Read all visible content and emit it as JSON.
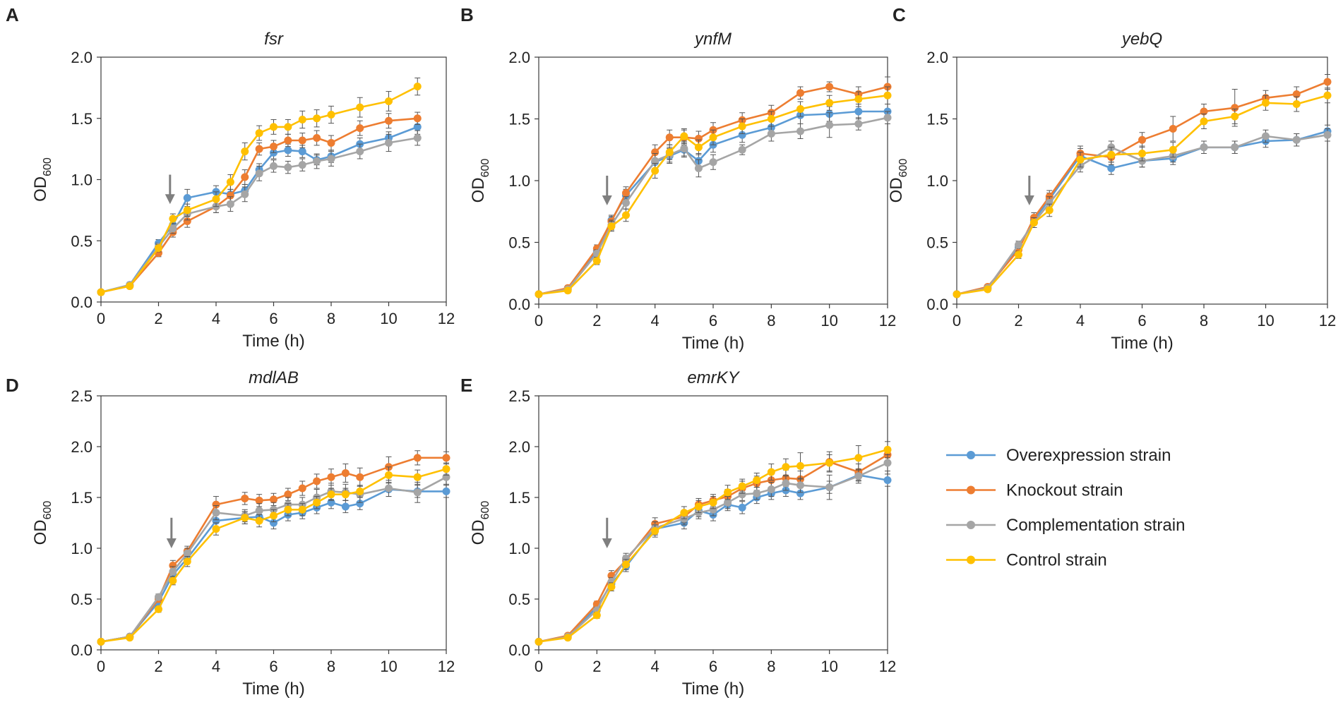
{
  "figure": {
    "legend": [
      {
        "label": "Overexpression strain",
        "color": "#5B9BD5"
      },
      {
        "label": "Knockout strain",
        "color": "#ED7D31"
      },
      {
        "label": "Complementation strain",
        "color": "#A5A5A5"
      },
      {
        "label": "Control strain",
        "color": "#FFC000"
      }
    ]
  },
  "chart_data": [
    {
      "type": "line",
      "panel": "A",
      "title": "fsr",
      "xlabel": "Time (h)",
      "ylabel_main": "OD",
      "ylabel_sub": "600",
      "xlim": [
        0,
        12
      ],
      "ylim": [
        0,
        2.0
      ],
      "xticks": [
        "0",
        "2",
        "4",
        "6",
        "8",
        "10",
        "12"
      ],
      "yticks": [
        "0.0",
        "0.5",
        "1.0",
        "1.5",
        "2.0"
      ],
      "arrow_x": 2.4,
      "x": [
        0,
        1,
        2,
        2.5,
        3,
        4,
        4.5,
        5,
        5.5,
        6,
        6.5,
        7,
        7.5,
        8,
        9,
        10,
        11
      ],
      "series": [
        {
          "name": "Overexpression strain",
          "values": [
            0.08,
            0.14,
            0.48,
            0.63,
            0.85,
            0.9,
            0.88,
            0.91,
            1.08,
            1.22,
            1.24,
            1.23,
            1.16,
            1.19,
            1.29,
            1.34,
            1.43
          ],
          "err": [
            0.02,
            0.02,
            0.03,
            0.04,
            0.07,
            0.05,
            0.08,
            0.05,
            0.05,
            0.05,
            0.05,
            0.05,
            0.04,
            0.05,
            0.05,
            0.05,
            0.06
          ]
        },
        {
          "name": "Knockout strain",
          "values": [
            0.08,
            0.13,
            0.4,
            0.57,
            0.66,
            0.78,
            0.87,
            1.02,
            1.25,
            1.27,
            1.32,
            1.32,
            1.34,
            1.3,
            1.42,
            1.48,
            1.5
          ],
          "err": [
            0.02,
            0.02,
            0.03,
            0.04,
            0.05,
            0.05,
            0.05,
            0.06,
            0.05,
            0.05,
            0.05,
            0.06,
            0.06,
            0.06,
            0.06,
            0.06,
            0.05
          ]
        },
        {
          "name": "Complementation strain",
          "values": [
            0.08,
            0.14,
            0.45,
            0.6,
            0.72,
            0.78,
            0.8,
            0.88,
            1.05,
            1.11,
            1.1,
            1.12,
            1.15,
            1.17,
            1.23,
            1.3,
            1.34
          ],
          "err": [
            0.02,
            0.02,
            0.03,
            0.04,
            0.05,
            0.05,
            0.06,
            0.06,
            0.06,
            0.05,
            0.05,
            0.05,
            0.06,
            0.06,
            0.06,
            0.07,
            0.06
          ]
        },
        {
          "name": "Control strain",
          "values": [
            0.08,
            0.13,
            0.44,
            0.68,
            0.75,
            0.84,
            0.98,
            1.23,
            1.38,
            1.43,
            1.43,
            1.49,
            1.5,
            1.53,
            1.59,
            1.64,
            1.76
          ],
          "err": [
            0.02,
            0.02,
            0.03,
            0.04,
            0.05,
            0.06,
            0.06,
            0.07,
            0.06,
            0.06,
            0.06,
            0.07,
            0.07,
            0.07,
            0.08,
            0.08,
            0.07
          ]
        }
      ]
    },
    {
      "type": "line",
      "panel": "B",
      "title": "ynfM",
      "xlabel": "Time (h)",
      "ylabel_main": "OD",
      "ylabel_sub": "600",
      "xlim": [
        0,
        12
      ],
      "ylim": [
        0,
        2.0
      ],
      "xticks": [
        "0",
        "2",
        "4",
        "6",
        "8",
        "10",
        "12"
      ],
      "yticks": [
        "0.0",
        "0.5",
        "1.0",
        "1.5",
        "2.0"
      ],
      "arrow_x": 2.35,
      "x": [
        0,
        1,
        2,
        2.5,
        3,
        4,
        4.5,
        5,
        5.5,
        6,
        7,
        8,
        9,
        10,
        11,
        12
      ],
      "series": [
        {
          "name": "Overexpression strain",
          "values": [
            0.08,
            0.12,
            0.43,
            0.68,
            0.88,
            1.15,
            1.2,
            1.25,
            1.16,
            1.29,
            1.37,
            1.43,
            1.53,
            1.54,
            1.56,
            1.56
          ],
          "err": [
            0.02,
            0.02,
            0.03,
            0.04,
            0.05,
            0.06,
            0.06,
            0.06,
            0.06,
            0.06,
            0.06,
            0.06,
            0.07,
            0.06,
            0.06,
            0.06
          ]
        },
        {
          "name": "Knockout strain",
          "values": [
            0.08,
            0.13,
            0.45,
            0.67,
            0.9,
            1.23,
            1.35,
            1.35,
            1.34,
            1.41,
            1.49,
            1.55,
            1.71,
            1.76,
            1.7,
            1.76
          ],
          "err": [
            0.02,
            0.02,
            0.03,
            0.04,
            0.05,
            0.06,
            0.06,
            0.06,
            0.06,
            0.06,
            0.06,
            0.06,
            0.05,
            0.04,
            0.06,
            0.08
          ]
        },
        {
          "name": "Complementation strain",
          "values": [
            0.08,
            0.12,
            0.41,
            0.64,
            0.82,
            1.16,
            1.21,
            1.26,
            1.1,
            1.15,
            1.25,
            1.38,
            1.4,
            1.45,
            1.46,
            1.51
          ],
          "err": [
            0.02,
            0.02,
            0.03,
            0.04,
            0.05,
            0.06,
            0.06,
            0.06,
            0.07,
            0.06,
            0.04,
            0.06,
            0.06,
            0.1,
            0.05,
            0.05
          ]
        },
        {
          "name": "Control strain",
          "values": [
            0.08,
            0.11,
            0.35,
            0.63,
            0.72,
            1.08,
            1.23,
            1.36,
            1.27,
            1.35,
            1.44,
            1.5,
            1.58,
            1.63,
            1.66,
            1.69
          ],
          "err": [
            0.02,
            0.02,
            0.03,
            0.04,
            0.05,
            0.06,
            0.06,
            0.06,
            0.06,
            0.06,
            0.06,
            0.06,
            0.06,
            0.06,
            0.06,
            0.07
          ]
        }
      ]
    },
    {
      "type": "line",
      "panel": "C",
      "title": "yebQ",
      "xlabel": "Time (h)",
      "ylabel_main": "OD",
      "ylabel_sub": "600",
      "xlim": [
        0,
        12
      ],
      "ylim": [
        0,
        2.0
      ],
      "xticks": [
        "0",
        "2",
        "4",
        "6",
        "8",
        "10",
        "12"
      ],
      "yticks": [
        "0.0",
        "0.5",
        "1.0",
        "1.5",
        "2.0"
      ],
      "arrow_x": 2.35,
      "x": [
        0,
        1,
        2,
        2.5,
        3,
        4,
        5,
        6,
        7,
        8,
        9,
        10,
        11,
        12
      ],
      "series": [
        {
          "name": "Overexpression strain",
          "values": [
            0.08,
            0.13,
            0.46,
            0.68,
            0.85,
            1.2,
            1.1,
            1.16,
            1.18,
            1.27,
            1.27,
            1.32,
            1.33,
            1.4
          ],
          "err": [
            0.02,
            0.02,
            0.03,
            0.04,
            0.05,
            0.06,
            0.05,
            0.05,
            0.05,
            0.05,
            0.05,
            0.05,
            0.05,
            0.05
          ]
        },
        {
          "name": "Knockout strain",
          "values": [
            0.08,
            0.14,
            0.44,
            0.7,
            0.87,
            1.22,
            1.19,
            1.33,
            1.42,
            1.56,
            1.59,
            1.67,
            1.7,
            1.8
          ],
          "err": [
            0.02,
            0.02,
            0.03,
            0.04,
            0.05,
            0.06,
            0.06,
            0.06,
            0.1,
            0.06,
            0.15,
            0.06,
            0.06,
            0.06
          ]
        },
        {
          "name": "Complementation strain",
          "values": [
            0.08,
            0.13,
            0.48,
            0.66,
            0.82,
            1.12,
            1.27,
            1.16,
            1.2,
            1.27,
            1.27,
            1.36,
            1.33,
            1.37
          ],
          "err": [
            0.02,
            0.02,
            0.03,
            0.04,
            0.05,
            0.05,
            0.05,
            0.05,
            0.05,
            0.05,
            0.05,
            0.05,
            0.05,
            0.05
          ]
        },
        {
          "name": "Control strain",
          "values": [
            0.08,
            0.12,
            0.4,
            0.66,
            0.76,
            1.17,
            1.21,
            1.22,
            1.25,
            1.48,
            1.52,
            1.63,
            1.62,
            1.69
          ],
          "err": [
            0.02,
            0.02,
            0.03,
            0.04,
            0.05,
            0.06,
            0.06,
            0.06,
            0.06,
            0.06,
            0.06,
            0.06,
            0.06,
            0.06
          ]
        }
      ]
    },
    {
      "type": "line",
      "panel": "D",
      "title": "mdlAB",
      "xlabel": "Time (h)",
      "ylabel_main": "OD",
      "ylabel_sub": "600",
      "xlim": [
        0,
        12
      ],
      "ylim": [
        0,
        2.5
      ],
      "xticks": [
        "0",
        "2",
        "4",
        "6",
        "8",
        "10",
        "12"
      ],
      "yticks": [
        "0.0",
        "0.5",
        "1.0",
        "1.5",
        "2.0",
        "2.5"
      ],
      "arrow_x": 2.45,
      "x": [
        0,
        1,
        2,
        2.5,
        3,
        4,
        5,
        5.5,
        6,
        6.5,
        7,
        7.5,
        8,
        8.5,
        9,
        10,
        11,
        12
      ],
      "series": [
        {
          "name": "Overexpression strain",
          "values": [
            0.08,
            0.13,
            0.47,
            0.74,
            0.9,
            1.27,
            1.3,
            1.31,
            1.25,
            1.33,
            1.35,
            1.4,
            1.45,
            1.41,
            1.44,
            1.58,
            1.56,
            1.56
          ],
          "err": [
            0.02,
            0.02,
            0.03,
            0.04,
            0.05,
            0.06,
            0.06,
            0.06,
            0.06,
            0.06,
            0.06,
            0.06,
            0.06,
            0.06,
            0.06,
            0.07,
            0.06,
            0.06
          ]
        },
        {
          "name": "Knockout strain",
          "values": [
            0.08,
            0.13,
            0.5,
            0.83,
            0.97,
            1.43,
            1.49,
            1.47,
            1.48,
            1.53,
            1.59,
            1.66,
            1.7,
            1.74,
            1.7,
            1.8,
            1.89,
            1.89
          ],
          "err": [
            0.02,
            0.02,
            0.03,
            0.05,
            0.05,
            0.08,
            0.06,
            0.06,
            0.06,
            0.06,
            0.07,
            0.07,
            0.08,
            0.09,
            0.09,
            0.1,
            0.07,
            0.06
          ]
        },
        {
          "name": "Complementation strain",
          "values": [
            0.08,
            0.13,
            0.52,
            0.77,
            0.95,
            1.35,
            1.32,
            1.37,
            1.38,
            1.43,
            1.43,
            1.5,
            1.56,
            1.55,
            1.53,
            1.59,
            1.55,
            1.7
          ],
          "err": [
            0.02,
            0.02,
            0.03,
            0.05,
            0.05,
            0.07,
            0.06,
            0.07,
            0.07,
            0.07,
            0.07,
            0.08,
            0.08,
            0.08,
            0.08,
            0.08,
            0.1,
            0.07
          ]
        },
        {
          "name": "Control strain",
          "values": [
            0.08,
            0.12,
            0.4,
            0.68,
            0.87,
            1.19,
            1.3,
            1.27,
            1.32,
            1.38,
            1.38,
            1.45,
            1.53,
            1.53,
            1.56,
            1.72,
            1.7,
            1.78
          ],
          "err": [
            0.02,
            0.02,
            0.03,
            0.04,
            0.05,
            0.06,
            0.06,
            0.06,
            0.06,
            0.06,
            0.06,
            0.06,
            0.06,
            0.06,
            0.06,
            0.08,
            0.07,
            0.06
          ]
        }
      ]
    },
    {
      "type": "line",
      "panel": "E",
      "title": "emrKY",
      "xlabel": "Time (h)",
      "ylabel_main": "OD",
      "ylabel_sub": "600",
      "xlim": [
        0,
        12
      ],
      "ylim": [
        0,
        2.5
      ],
      "xticks": [
        "0",
        "2",
        "4",
        "6",
        "8",
        "10",
        "12"
      ],
      "yticks": [
        "0.0",
        "0.5",
        "1.0",
        "1.5",
        "2.0",
        "2.5"
      ],
      "arrow_x": 2.35,
      "x": [
        0,
        1,
        2,
        2.5,
        3,
        4,
        5,
        5.5,
        6,
        6.5,
        7,
        7.5,
        8,
        8.5,
        9,
        10,
        11,
        12
      ],
      "series": [
        {
          "name": "Overexpression strain",
          "values": [
            0.08,
            0.13,
            0.42,
            0.65,
            0.82,
            1.19,
            1.25,
            1.37,
            1.33,
            1.43,
            1.4,
            1.5,
            1.54,
            1.57,
            1.54,
            1.6,
            1.72,
            1.67
          ],
          "err": [
            0.02,
            0.02,
            0.03,
            0.04,
            0.05,
            0.06,
            0.06,
            0.06,
            0.06,
            0.06,
            0.06,
            0.06,
            0.06,
            0.06,
            0.06,
            0.06,
            0.06,
            0.06
          ]
        },
        {
          "name": "Knockout strain",
          "values": [
            0.08,
            0.14,
            0.45,
            0.73,
            0.88,
            1.24,
            1.31,
            1.43,
            1.47,
            1.51,
            1.59,
            1.64,
            1.67,
            1.69,
            1.68,
            1.85,
            1.75,
            1.92
          ],
          "err": [
            0.02,
            0.02,
            0.03,
            0.05,
            0.05,
            0.06,
            0.06,
            0.06,
            0.06,
            0.07,
            0.07,
            0.07,
            0.08,
            0.08,
            0.08,
            0.1,
            0.08,
            0.07
          ]
        },
        {
          "name": "Complementation strain",
          "values": [
            0.08,
            0.13,
            0.39,
            0.67,
            0.9,
            1.2,
            1.29,
            1.35,
            1.38,
            1.45,
            1.53,
            1.54,
            1.58,
            1.64,
            1.62,
            1.6,
            1.71,
            1.84
          ],
          "err": [
            0.02,
            0.02,
            0.03,
            0.04,
            0.05,
            0.06,
            0.06,
            0.06,
            0.06,
            0.06,
            0.06,
            0.06,
            0.07,
            0.07,
            0.07,
            0.12,
            0.07,
            0.08
          ]
        },
        {
          "name": "Control strain",
          "values": [
            0.08,
            0.12,
            0.34,
            0.62,
            0.84,
            1.17,
            1.35,
            1.41,
            1.45,
            1.55,
            1.61,
            1.67,
            1.75,
            1.8,
            1.81,
            1.84,
            1.89,
            1.97
          ],
          "err": [
            0.02,
            0.02,
            0.03,
            0.04,
            0.05,
            0.06,
            0.06,
            0.06,
            0.06,
            0.07,
            0.07,
            0.07,
            0.08,
            0.08,
            0.13,
            0.08,
            0.12,
            0.08
          ]
        }
      ]
    }
  ]
}
